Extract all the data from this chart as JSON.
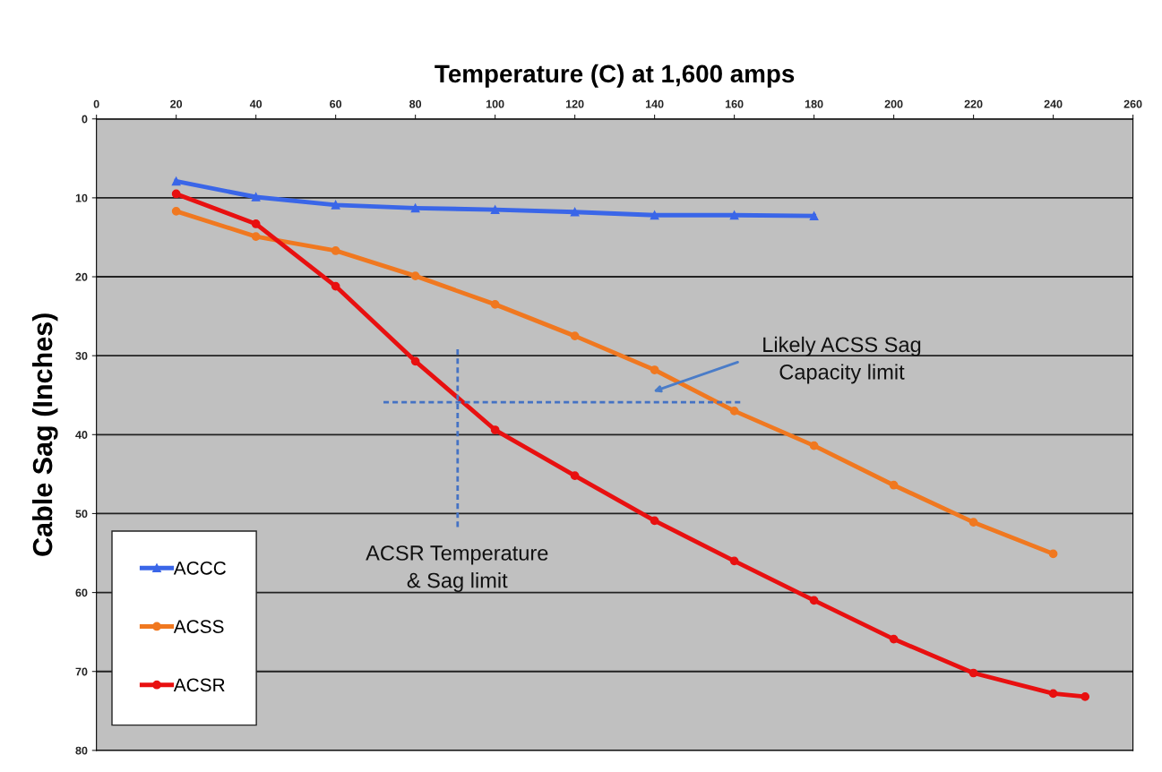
{
  "chart_data": {
    "type": "line",
    "xlabel": "Temperature (C) at 1,600 amps",
    "ylabel": "Cable Sag (Inches)",
    "xlim": [
      0,
      260
    ],
    "xticks": [
      0,
      20,
      40,
      60,
      80,
      100,
      120,
      140,
      160,
      180,
      200,
      220,
      240,
      260
    ],
    "ylim": [
      80,
      0
    ],
    "yticks": [
      0,
      10,
      20,
      30,
      40,
      50,
      60,
      70,
      80
    ],
    "grid": "y",
    "legend": "bottom left",
    "series": [
      {
        "name": "ACCC",
        "color": "#3a66e8",
        "marker": "triangle",
        "x": [
          20,
          40,
          60,
          80,
          100,
          120,
          140,
          160,
          180
        ],
        "values": [
          7.9,
          9.9,
          10.9,
          11.3,
          11.5,
          11.8,
          12.2,
          12.2,
          12.3
        ]
      },
      {
        "name": "ACSS",
        "color": "#f07820",
        "marker": "circle",
        "x": [
          20,
          40,
          60,
          80,
          100,
          120,
          140,
          160,
          180,
          200,
          220,
          240
        ],
        "values": [
          11.7,
          14.9,
          16.7,
          19.9,
          23.5,
          27.5,
          31.8,
          37.0,
          41.4,
          46.4,
          51.1,
          55.1
        ]
      },
      {
        "name": "ACSR",
        "color": "#e81010",
        "marker": "circle",
        "x": [
          20,
          40,
          60,
          80,
          100,
          120,
          140,
          160,
          180,
          200,
          220,
          240,
          248
        ],
        "values": [
          9.5,
          13.3,
          21.2,
          30.7,
          39.4,
          45.2,
          50.9,
          56.0,
          61.0,
          65.9,
          70.2,
          72.8,
          73.2
        ]
      },
      {
        "color": "#4472c4",
        "marker": "none",
        "line_style": "dashed",
        "x": [
          72,
          161.5
        ],
        "values": [
          35.9,
          35.9
        ]
      },
      {
        "color": "#4472c4",
        "marker": "none",
        "line_style": "dashed",
        "x": [
          90.6,
          90.6
        ],
        "values": [
          29.2,
          51.7
        ]
      }
    ],
    "annotations": [
      "Likely ACSS Sag\nCapacity limit",
      "ACSR Temperature\n& Sag limit"
    ]
  }
}
